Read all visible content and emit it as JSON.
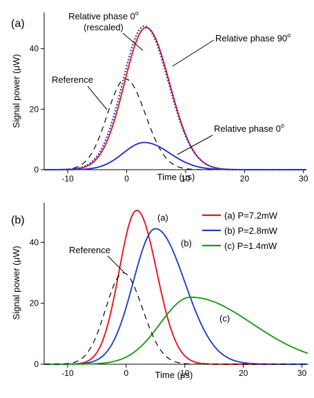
{
  "chart_data": [
    {
      "panel": "(a)",
      "type": "line",
      "xlabel": "Time (μs)",
      "ylabel": "Signal power (μW)",
      "xlim": [
        -14,
        30.5
      ],
      "ylim": [
        0,
        52
      ],
      "xticks": [
        -10,
        0,
        10,
        20,
        30
      ],
      "yticks": [
        0,
        20,
        40
      ],
      "grid": false,
      "series": [
        {
          "name": "Reference",
          "color": "#000000",
          "dash": "dashed",
          "peak": 30,
          "center": -0.2,
          "sigma_left": 3.1,
          "sigma_right": 3.4
        },
        {
          "name": "Relative phase 90°",
          "color": "#e8141c",
          "dash": "solid",
          "peak": 47,
          "center": 3.3,
          "sigma_left": 3.7,
          "sigma_right": 4.0
        },
        {
          "name": "Relative phase 0° (rescaled)",
          "color": "#2233cc",
          "dash": "dotted",
          "peak": 47.5,
          "center": 3.0,
          "sigma_left": 3.7,
          "sigma_right": 4.1
        },
        {
          "name": "Relative phase 0°",
          "color": "#1f2fd6",
          "dash": "solid",
          "peak": 9,
          "center": 3.0,
          "sigma_left": 3.6,
          "sigma_right": 4.3
        }
      ],
      "annotations": [
        {
          "text_lines": [
            "Relative phase 0",
            "(rescaled)"
          ],
          "has_degree": true
        },
        {
          "text": "Relative phase 90",
          "has_degree": true
        },
        {
          "text": "Reference"
        },
        {
          "text": "Relative phase 0",
          "has_degree": true
        }
      ]
    },
    {
      "panel": "(b)",
      "type": "line",
      "xlabel": "Time (μs)",
      "ylabel": "Signal power (μW)",
      "xlim": [
        -14,
        31
      ],
      "ylim": [
        0,
        53
      ],
      "xticks": [
        -10,
        0,
        10,
        20,
        30
      ],
      "yticks": [
        0,
        20,
        40
      ],
      "grid": false,
      "legend_position": "top-right",
      "series": [
        {
          "name": "(a) P=7.2mW",
          "label": "(a)",
          "color": "#e8141c",
          "dash": "solid",
          "peak": 50.5,
          "center": 1.8,
          "sigma_left": 3.0,
          "sigma_right": 3.4
        },
        {
          "name": "(b) P=2.8mW",
          "label": "(b)",
          "color": "#1f3fc8",
          "dash": "solid",
          "peak": 44.5,
          "center": 5.0,
          "sigma_left": 3.8,
          "sigma_right": 5.0
        },
        {
          "name": "(c) P=1.4mW",
          "label": "(c)",
          "color": "#1c9a1c",
          "dash": "solid",
          "peak": 22,
          "center": 11.0,
          "sigma_left": 5.2,
          "sigma_right": 10.5
        },
        {
          "name": "Reference",
          "color": "#000000",
          "dash": "dashed",
          "peak": 30,
          "center": -0.5,
          "sigma_left": 3.0,
          "sigma_right": 3.3
        }
      ],
      "annotations": [
        {
          "text": "Reference"
        },
        {
          "text": "(a)"
        },
        {
          "text": "(b)"
        },
        {
          "text": "(c)"
        }
      ]
    }
  ]
}
